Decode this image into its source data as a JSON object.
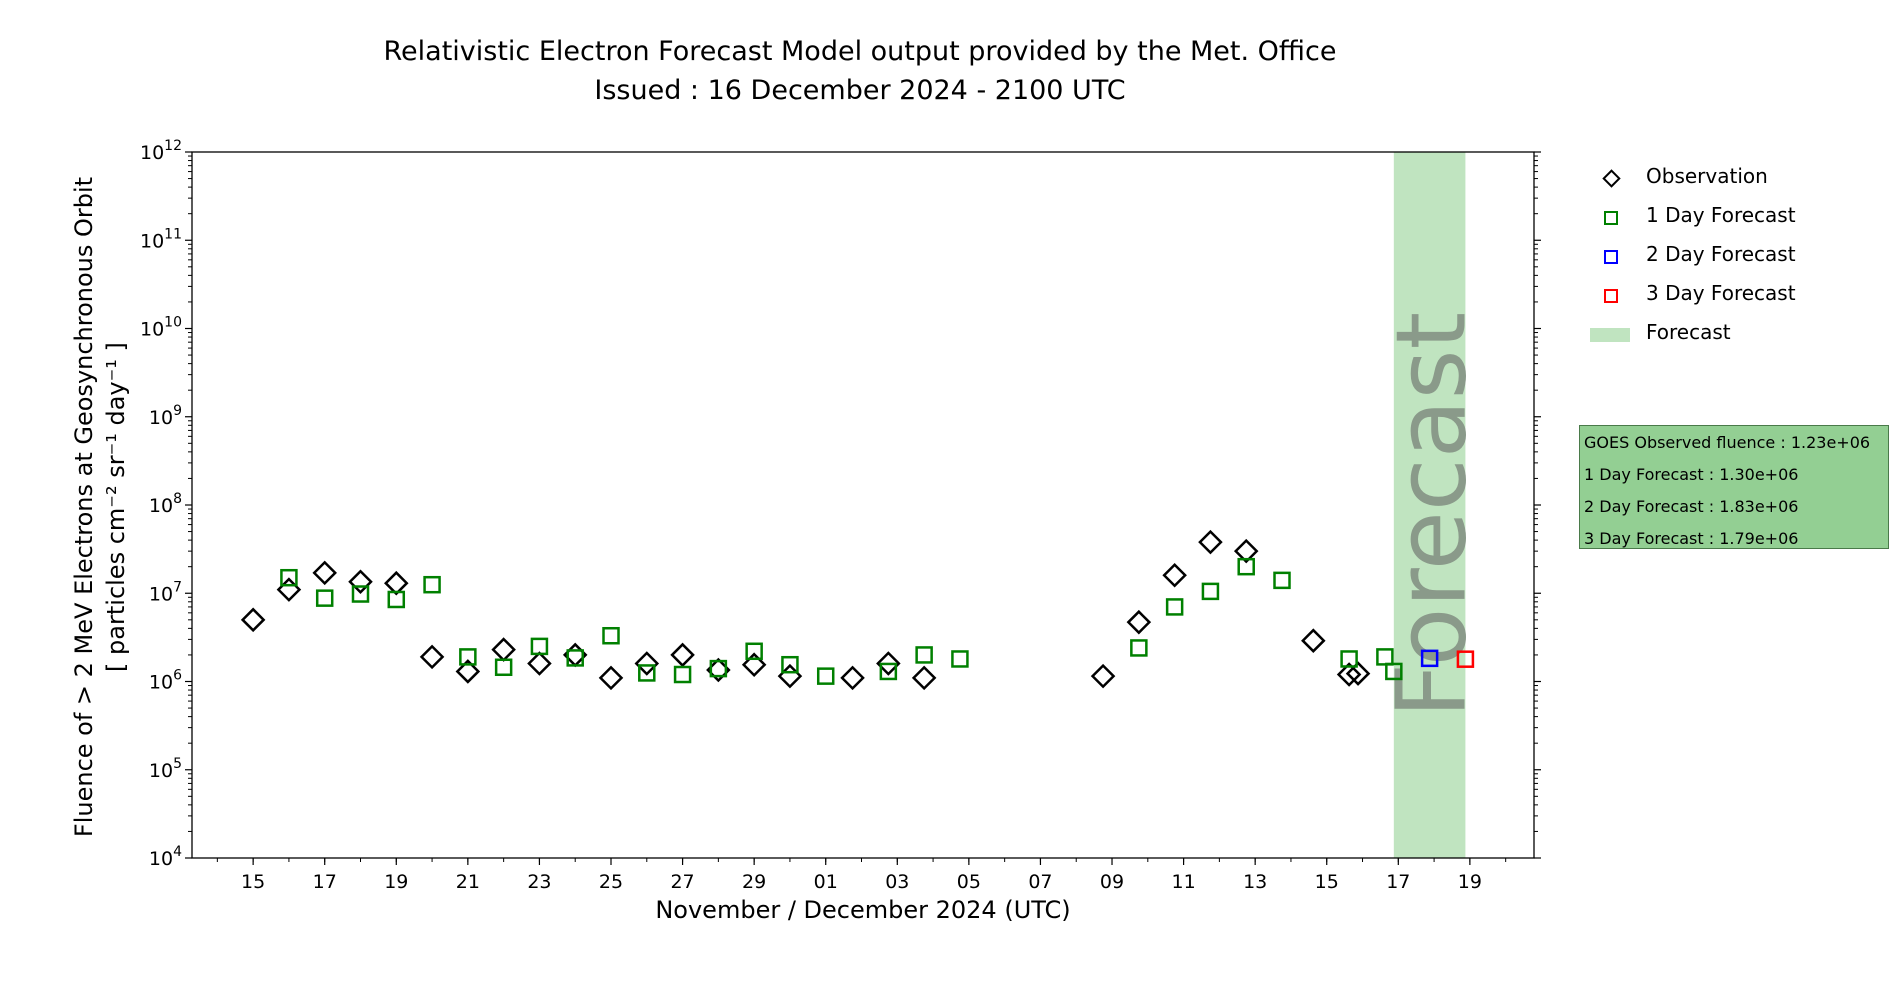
{
  "title_line1": "Relativistic Electron Forecast Model output provided by the Met. Office",
  "title_line2": "Issued : 16 December 2024 - 2100 UTC",
  "xlabel": "November / December 2024 (UTC)",
  "ylabel_line1": "Fluence of > 2 MeV Electrons at Geosynchronous Orbit",
  "ylabel_line2": "[ particles cm⁻² sr⁻¹ day⁻¹ ]",
  "forecast_band_label": "Forecast",
  "legend": [
    {
      "label": "Observation",
      "symbol": "diamond",
      "color": "#000000"
    },
    {
      "label": "1 Day Forecast",
      "symbol": "square",
      "color": "#008000"
    },
    {
      "label": "2 Day Forecast",
      "symbol": "square",
      "color": "#0000ff"
    },
    {
      "label": "3 Day Forecast",
      "symbol": "square",
      "color": "#ff0000"
    },
    {
      "label": "Forecast",
      "symbol": "band",
      "color": "#c0e4c0"
    }
  ],
  "info_box": {
    "line1": "GOES Observed fluence : 1.23e+06",
    "line2": "1 Day Forecast : 1.30e+06",
    "line3": "2 Day Forecast : 1.83e+06",
    "line4": "3 Day Forecast : 1.79e+06"
  },
  "chart_data": {
    "type": "scatter",
    "x_unit": "date",
    "y_scale": "log",
    "xlim": [
      "2024-11-13T07:00",
      "2024-12-20T19:00"
    ],
    "ylim": [
      10000.0,
      1000000000000.0
    ],
    "x_ticks": [
      "15",
      "17",
      "19",
      "21",
      "23",
      "25",
      "27",
      "29",
      "01",
      "03",
      "05",
      "07",
      "09",
      "11",
      "13",
      "15",
      "17",
      "19"
    ],
    "x_tick_dates": [
      "2024-11-15",
      "2024-11-17",
      "2024-11-19",
      "2024-11-21",
      "2024-11-23",
      "2024-11-25",
      "2024-11-27",
      "2024-11-29",
      "2024-12-01",
      "2024-12-03",
      "2024-12-05",
      "2024-12-07",
      "2024-12-09",
      "2024-12-11",
      "2024-12-13",
      "2024-12-15",
      "2024-12-17",
      "2024-12-19"
    ],
    "y_ticks": [
      10000.0,
      100000.0,
      1000000.0,
      10000000.0,
      100000000.0,
      1000000000.0,
      10000000000.0,
      100000000000.0,
      1000000000000.0
    ],
    "y_tick_exponents": [
      "4",
      "5",
      "6",
      "7",
      "8",
      "9",
      "10",
      "11",
      "12"
    ],
    "forecast_band": [
      "2024-12-16T21:00",
      "2024-12-18T21:00"
    ],
    "series": [
      {
        "name": "Observation",
        "marker": "diamond",
        "color": "#000000",
        "points": [
          [
            "2024-11-15T00:00",
            5000000.0
          ],
          [
            "2024-11-16T00:00",
            11000000.0
          ],
          [
            "2024-11-17T00:00",
            17000000.0
          ],
          [
            "2024-11-18T00:00",
            13500000.0
          ],
          [
            "2024-11-19T00:00",
            13000000.0
          ],
          [
            "2024-11-20T00:00",
            1900000.0
          ],
          [
            "2024-11-21T00:00",
            1300000.0
          ],
          [
            "2024-11-22T00:00",
            2300000.0
          ],
          [
            "2024-11-23T00:00",
            1600000.0
          ],
          [
            "2024-11-24T00:00",
            2000000.0
          ],
          [
            "2024-11-25T00:00",
            1100000.0
          ],
          [
            "2024-11-26T00:00",
            1600000.0
          ],
          [
            "2024-11-27T00:00",
            2000000.0
          ],
          [
            "2024-11-28T00:00",
            1350000.0
          ],
          [
            "2024-11-29T00:00",
            1550000.0
          ],
          [
            "2024-11-30T00:00",
            1150000.0
          ],
          [
            "2024-12-01T18:00",
            1100000.0
          ],
          [
            "2024-12-02T18:00",
            1600000.0
          ],
          [
            "2024-12-03T18:00",
            1100000.0
          ],
          [
            "2024-12-08T18:00",
            1150000.0
          ],
          [
            "2024-12-09T18:00",
            4700000.0
          ],
          [
            "2024-12-10T18:00",
            16000000.0
          ],
          [
            "2024-12-11T18:00",
            38000000.0
          ],
          [
            "2024-12-12T18:00",
            30000000.0
          ],
          [
            "2024-12-14T15:00",
            2900000.0
          ],
          [
            "2024-12-15T15:00",
            1200000.0
          ],
          [
            "2024-12-15T21:00",
            1230000.0
          ]
        ]
      },
      {
        "name": "1 Day Forecast",
        "marker": "square",
        "color": "#008000",
        "points": [
          [
            "2024-11-16T00:00",
            15000000.0
          ],
          [
            "2024-11-17T00:00",
            8800000.0
          ],
          [
            "2024-11-18T00:00",
            9800000.0
          ],
          [
            "2024-11-19T00:00",
            8500000.0
          ],
          [
            "2024-11-20T00:00",
            12500000.0
          ],
          [
            "2024-11-21T00:00",
            1900000.0
          ],
          [
            "2024-11-22T00:00",
            1450000.0
          ],
          [
            "2024-11-23T00:00",
            2500000.0
          ],
          [
            "2024-11-24T00:00",
            1850000.0
          ],
          [
            "2024-11-25T00:00",
            3300000.0
          ],
          [
            "2024-11-26T00:00",
            1250000.0
          ],
          [
            "2024-11-27T00:00",
            1200000.0
          ],
          [
            "2024-11-28T00:00",
            1400000.0
          ],
          [
            "2024-11-29T00:00",
            2200000.0
          ],
          [
            "2024-11-30T00:00",
            1550000.0
          ],
          [
            "2024-12-01T00:00",
            1150000.0
          ],
          [
            "2024-12-02T18:00",
            1300000.0
          ],
          [
            "2024-12-03T18:00",
            2000000.0
          ],
          [
            "2024-12-04T18:00",
            1800000.0
          ],
          [
            "2024-12-09T18:00",
            2400000.0
          ],
          [
            "2024-12-10T18:00",
            7000000.0
          ],
          [
            "2024-12-11T18:00",
            10500000.0
          ],
          [
            "2024-12-12T18:00",
            20000000.0
          ],
          [
            "2024-12-13T18:00",
            14000000.0
          ],
          [
            "2024-12-15T15:00",
            1800000.0
          ],
          [
            "2024-12-16T15:00",
            1900000.0
          ],
          [
            "2024-12-16T21:00",
            1300000.0
          ]
        ]
      },
      {
        "name": "2 Day Forecast",
        "marker": "square",
        "color": "#0000ff",
        "points": [
          [
            "2024-12-17T21:00",
            1830000.0
          ]
        ]
      },
      {
        "name": "3 Day Forecast",
        "marker": "square",
        "color": "#ff0000",
        "points": [
          [
            "2024-12-18T21:00",
            1790000.0
          ]
        ]
      }
    ]
  }
}
